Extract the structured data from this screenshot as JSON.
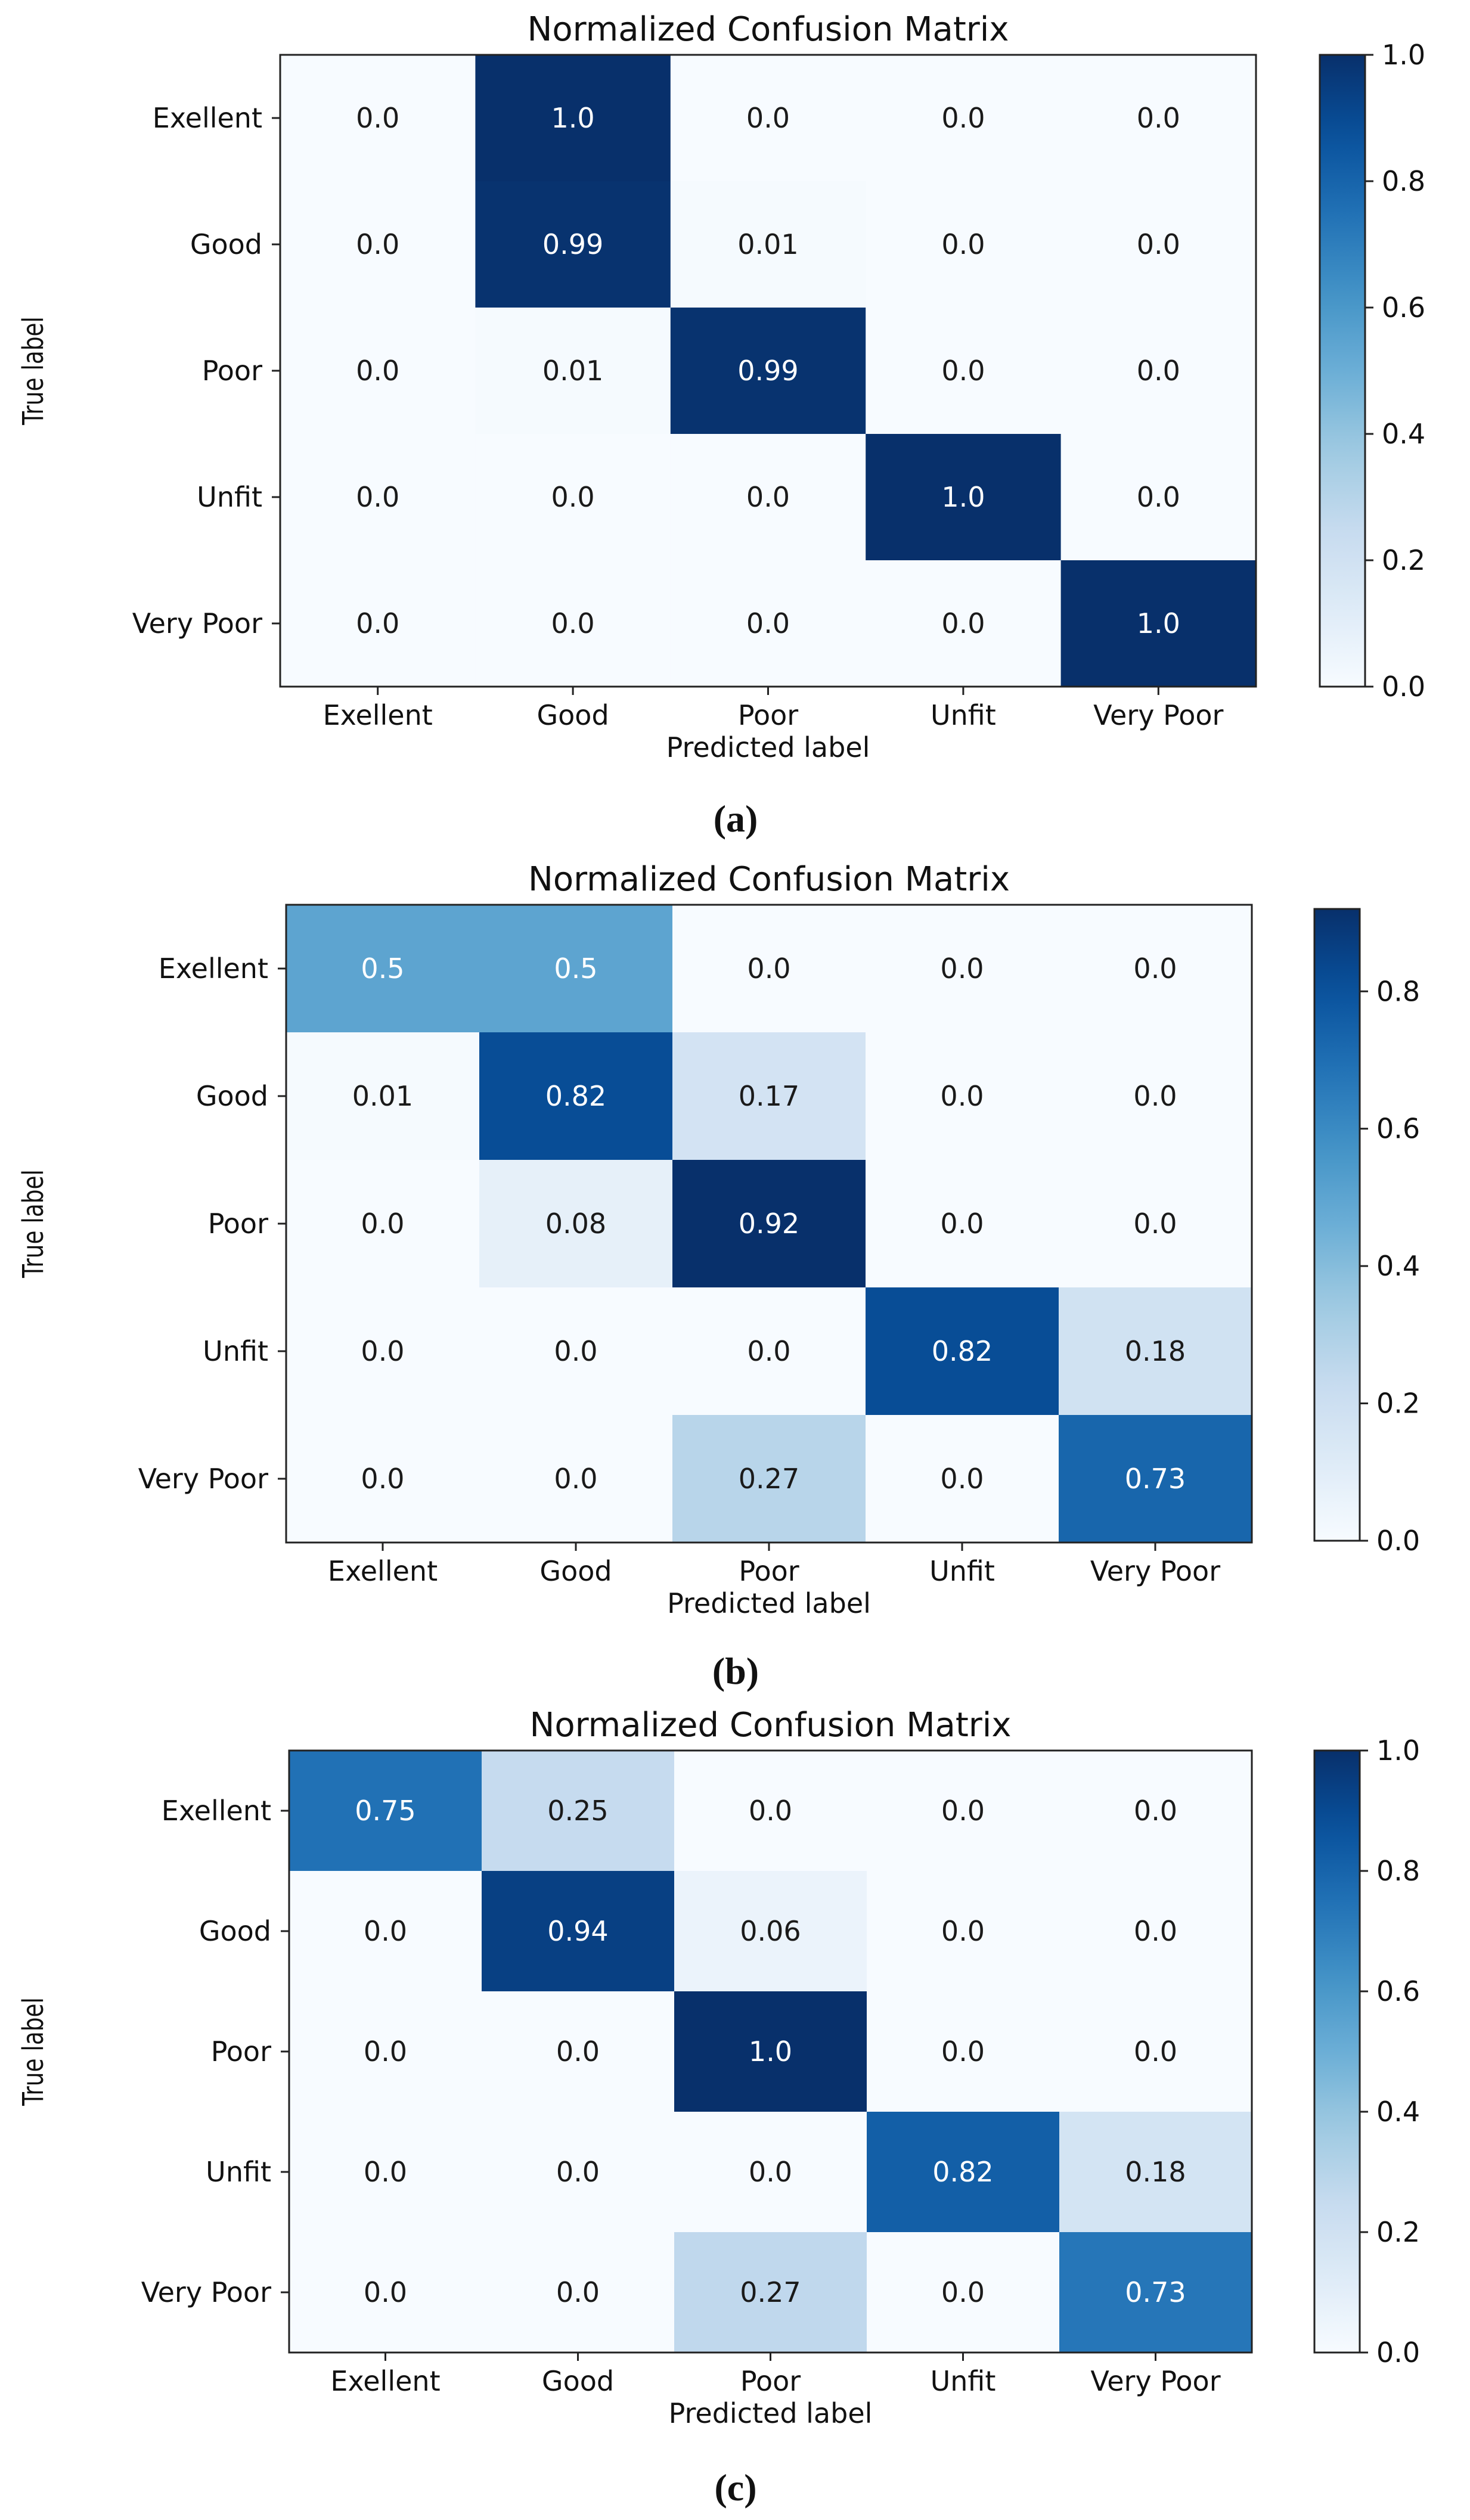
{
  "figure": {
    "captions": [
      "(a)",
      "(b)",
      "(c)"
    ]
  },
  "colormap": {
    "name": "Blues",
    "stops": [
      "#f7fbff",
      "#deebf7",
      "#c6dbef",
      "#9ecae1",
      "#6baed6",
      "#4292c6",
      "#2171b5",
      "#08519c",
      "#08306b"
    ]
  },
  "chart_data": [
    {
      "type": "heatmap",
      "title": "Normalized Confusion Matrix",
      "xlabel": "Predicted label",
      "ylabel": "True label",
      "x_categories": [
        "Exellent",
        "Good",
        "Poor",
        "Unfit",
        "Very Poor"
      ],
      "y_categories": [
        "Exellent",
        "Good",
        "Poor",
        "Unfit",
        "Very Poor"
      ],
      "values": [
        [
          0.0,
          1.0,
          0.0,
          0.0,
          0.0
        ],
        [
          0.0,
          0.99,
          0.01,
          0.0,
          0.0
        ],
        [
          0.0,
          0.01,
          0.99,
          0.0,
          0.0
        ],
        [
          0.0,
          0.0,
          0.0,
          1.0,
          0.0
        ],
        [
          0.0,
          0.0,
          0.0,
          0.0,
          1.0
        ]
      ],
      "cell_labels": [
        [
          "0.0",
          "1.0",
          "0.0",
          "0.0",
          "0.0"
        ],
        [
          "0.0",
          "0.99",
          "0.01",
          "0.0",
          "0.0"
        ],
        [
          "0.0",
          "0.01",
          "0.99",
          "0.0",
          "0.0"
        ],
        [
          "0.0",
          "0.0",
          "0.0",
          "1.0",
          "0.0"
        ],
        [
          "0.0",
          "0.0",
          "0.0",
          "0.0",
          "1.0"
        ]
      ],
      "colorbar": {
        "min": 0.0,
        "max": 1.0,
        "ticks": [
          0.0,
          0.2,
          0.4,
          0.6,
          0.8,
          1.0
        ],
        "tick_labels": [
          "0.0",
          "0.2",
          "0.4",
          "0.6",
          "0.8",
          "1.0"
        ]
      }
    },
    {
      "type": "heatmap",
      "title": "Normalized Confusion Matrix",
      "xlabel": "Predicted label",
      "ylabel": "True label",
      "x_categories": [
        "Exellent",
        "Good",
        "Poor",
        "Unfit",
        "Very Poor"
      ],
      "y_categories": [
        "Exellent",
        "Good",
        "Poor",
        "Unfit",
        "Very Poor"
      ],
      "values": [
        [
          0.5,
          0.5,
          0.0,
          0.0,
          0.0
        ],
        [
          0.01,
          0.82,
          0.17,
          0.0,
          0.0
        ],
        [
          0.0,
          0.08,
          0.92,
          0.0,
          0.0
        ],
        [
          0.0,
          0.0,
          0.0,
          0.82,
          0.18
        ],
        [
          0.0,
          0.0,
          0.27,
          0.0,
          0.73
        ]
      ],
      "cell_labels": [
        [
          "0.5",
          "0.5",
          "0.0",
          "0.0",
          "0.0"
        ],
        [
          "0.01",
          "0.82",
          "0.17",
          "0.0",
          "0.0"
        ],
        [
          "0.0",
          "0.08",
          "0.92",
          "0.0",
          "0.0"
        ],
        [
          "0.0",
          "0.0",
          "0.0",
          "0.82",
          "0.18"
        ],
        [
          "0.0",
          "0.0",
          "0.27",
          "0.0",
          "0.73"
        ]
      ],
      "colorbar": {
        "min": 0.0,
        "max": 0.92,
        "ticks": [
          0.0,
          0.2,
          0.4,
          0.6,
          0.8
        ],
        "tick_labels": [
          "0.0",
          "0.2",
          "0.4",
          "0.6",
          "0.8"
        ]
      }
    },
    {
      "type": "heatmap",
      "title": "Normalized Confusion Matrix",
      "xlabel": "Predicted label",
      "ylabel": "True label",
      "x_categories": [
        "Exellent",
        "Good",
        "Poor",
        "Unfit",
        "Very Poor"
      ],
      "y_categories": [
        "Exellent",
        "Good",
        "Poor",
        "Unfit",
        "Very Poor"
      ],
      "values": [
        [
          0.75,
          0.25,
          0.0,
          0.0,
          0.0
        ],
        [
          0.0,
          0.94,
          0.06,
          0.0,
          0.0
        ],
        [
          0.0,
          0.0,
          1.0,
          0.0,
          0.0
        ],
        [
          0.0,
          0.0,
          0.0,
          0.82,
          0.18
        ],
        [
          0.0,
          0.0,
          0.27,
          0.0,
          0.73
        ]
      ],
      "cell_labels": [
        [
          "0.75",
          "0.25",
          "0.0",
          "0.0",
          "0.0"
        ],
        [
          "0.0",
          "0.94",
          "0.06",
          "0.0",
          "0.0"
        ],
        [
          "0.0",
          "0.0",
          "1.0",
          "0.0",
          "0.0"
        ],
        [
          "0.0",
          "0.0",
          "0.0",
          "0.82",
          "0.18"
        ],
        [
          "0.0",
          "0.0",
          "0.27",
          "0.0",
          "0.73"
        ]
      ],
      "colorbar": {
        "min": 0.0,
        "max": 1.0,
        "ticks": [
          0.0,
          0.2,
          0.4,
          0.6,
          0.8,
          1.0
        ],
        "tick_labels": [
          "0.0",
          "0.2",
          "0.4",
          "0.6",
          "0.8",
          "1.0"
        ]
      }
    }
  ]
}
